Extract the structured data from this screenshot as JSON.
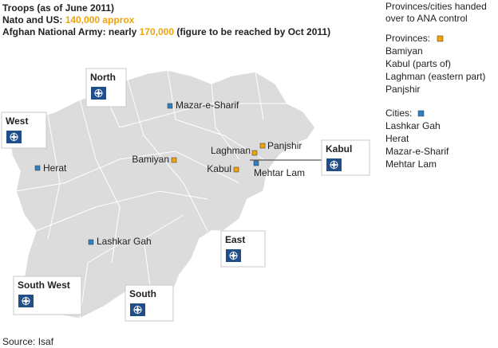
{
  "header": {
    "title": "Troops (as of June 2011)",
    "nato": {
      "label": "Nato and US:",
      "value": "140,000 approx"
    },
    "ana": {
      "label": "Afghan National Army: nearly",
      "value": "170,000",
      "note": "(figure to be reached by Oct 2011)"
    }
  },
  "legend": {
    "title": [
      "Provinces/cities handed",
      "over to ANA control"
    ],
    "provinces": {
      "heading": "Provinces:",
      "color": "#f0a30a",
      "items": [
        "Bamiyan",
        "Kabul (parts of)",
        "Laghman (eastern part)",
        "Panjshir"
      ]
    },
    "cities": {
      "heading": "Cities:",
      "color": "#2f7fc1",
      "items": [
        "Lashkar Gah",
        "Herat",
        "Mazar-e-Sharif",
        "Mehtar Lam"
      ]
    }
  },
  "commands": [
    "North",
    "West",
    "Kabul",
    "East",
    "South West",
    "South"
  ],
  "places": [
    {
      "label": "Mazar-e-Sharif",
      "color": "#2f7fc1"
    },
    {
      "label": "Herat",
      "color": "#2f7fc1"
    },
    {
      "label": "Bamiyan",
      "color": "#f0a30a"
    },
    {
      "label": "Laghman",
      "color": "#f0a30a"
    },
    {
      "label": "Panjshir",
      "color": "#f0a30a"
    },
    {
      "label": "Kabul",
      "color": "#f0a30a"
    },
    {
      "label": "Mehtar Lam",
      "color": "#2f7fc1"
    },
    {
      "label": "Lashkar Gah",
      "color": "#2f7fc1"
    }
  ],
  "source": "Source: Isaf"
}
